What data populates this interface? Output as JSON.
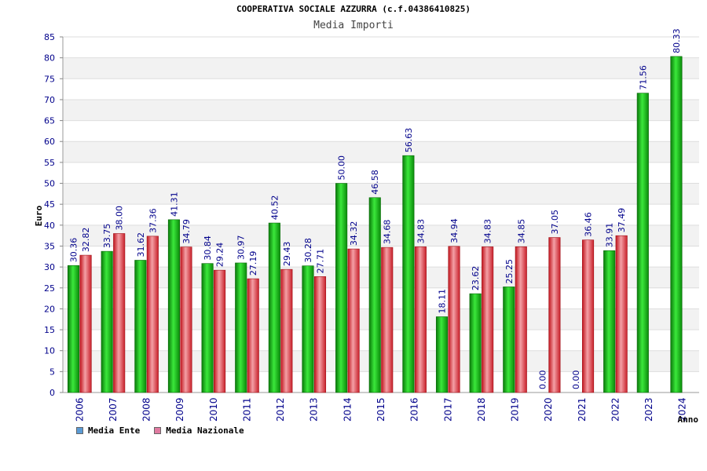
{
  "chart_data": {
    "type": "bar",
    "title": "COOPERATIVA SOCIALE AZZURRA (c.f.04386410825)",
    "subtitle": "Media Importi",
    "ylabel": "Euro",
    "xlabel": "Anno",
    "ylim": [
      0,
      85
    ],
    "ytick_step": 5,
    "grid": true,
    "legend_position": "bottom-left",
    "categories": [
      "2006",
      "2007",
      "2008",
      "2009",
      "2010",
      "2011",
      "2012",
      "2013",
      "2014",
      "2015",
      "2016",
      "2017",
      "2018",
      "2019",
      "2020",
      "2021",
      "2022",
      "2023",
      "2024"
    ],
    "series": [
      {
        "name": "Media Ente",
        "legend_color": "#5b9bd5",
        "color": "#1fb81f",
        "values": [
          30.36,
          33.75,
          31.62,
          41.31,
          30.84,
          30.97,
          40.52,
          30.28,
          50.0,
          46.58,
          56.63,
          18.11,
          23.62,
          25.25,
          0.0,
          0.0,
          33.91,
          71.56,
          80.33
        ],
        "labels": [
          "30.36",
          "33.75",
          "31.62",
          "41.31",
          "30.84",
          "30.97",
          "40.52",
          "30.28",
          "50.00",
          "46.58",
          "56.63",
          "18.11",
          "23.62",
          "25.25",
          "0.00",
          "0.00",
          "33.91",
          "71.56",
          "80.33"
        ]
      },
      {
        "name": "Media Nazionale",
        "legend_color": "#e07aa0",
        "color": "#e8323c",
        "values": [
          32.82,
          38.0,
          37.36,
          34.79,
          29.24,
          27.19,
          29.43,
          27.71,
          34.32,
          34.68,
          34.83,
          34.94,
          34.83,
          34.85,
          37.05,
          36.46,
          37.49,
          null,
          null
        ],
        "labels": [
          "32.82",
          "38.00",
          "37.36",
          "34.79",
          "29.24",
          "27.19",
          "29.43",
          "27.71",
          "34.32",
          "34.68",
          "34.83",
          "34.94",
          "34.83",
          "34.85",
          "37.05",
          "36.46",
          "37.49",
          null,
          null
        ]
      }
    ]
  }
}
